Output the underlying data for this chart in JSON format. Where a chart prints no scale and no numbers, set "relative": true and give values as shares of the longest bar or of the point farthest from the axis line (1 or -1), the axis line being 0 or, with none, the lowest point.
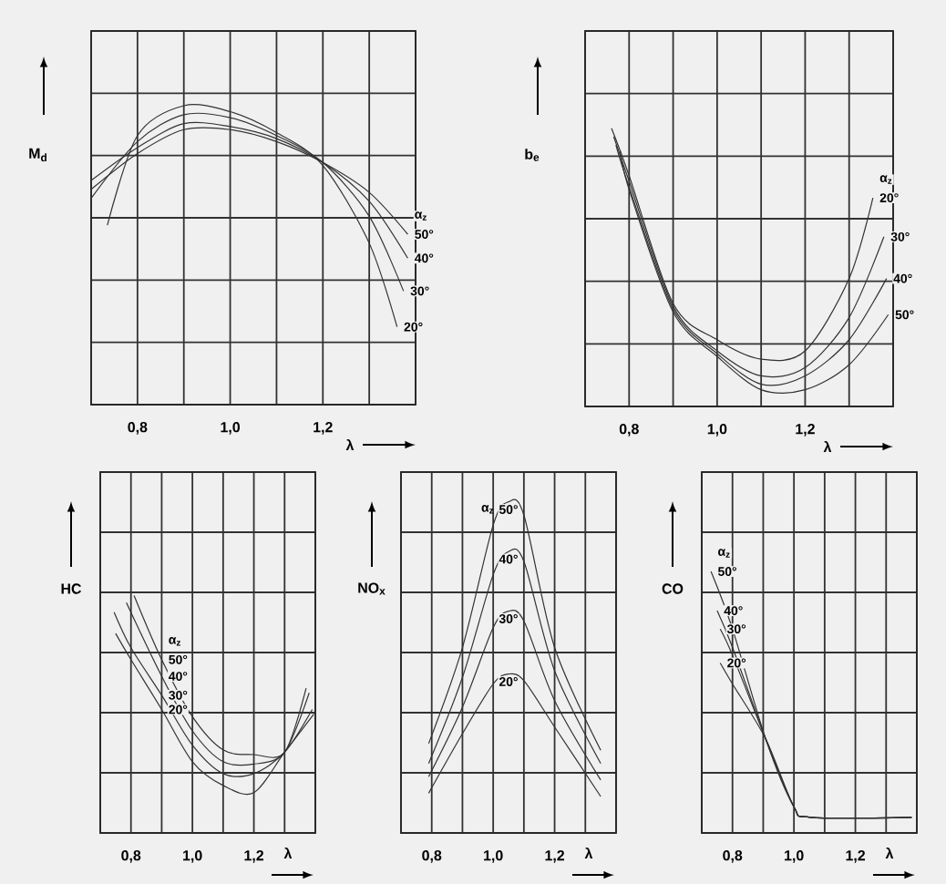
{
  "chart_data": [
    {
      "type": "line",
      "ylabel": "M$_{d}$",
      "xlabel": "λ",
      "legend_title": "α$_{z}$",
      "relative": true,
      "grid": true,
      "xlim": [
        0.7,
        1.4
      ],
      "xticks": [
        {
          "value": 0.7,
          "label": null
        },
        {
          "value": 0.8,
          "label": "0,8"
        },
        {
          "value": 0.9,
          "label": null
        },
        {
          "value": 1.0,
          "label": "1,0"
        },
        {
          "value": 1.1,
          "label": null
        },
        {
          "value": 1.2,
          "label": "1,2"
        },
        {
          "value": 1.3,
          "label": null
        },
        {
          "value": 1.4,
          "label": null
        }
      ],
      "series": [
        {
          "name": "50°",
          "color": "#333333",
          "x": [
            0.7,
            0.8,
            0.9,
            1.0,
            1.1,
            1.2,
            1.3,
            1.383
          ],
          "values": [
            0.72,
            0.84,
            0.92,
            0.92,
            0.88,
            0.81,
            0.71,
            0.57
          ]
        },
        {
          "name": "40°",
          "color": "#333333",
          "x": [
            0.7,
            0.8,
            0.9,
            1.0,
            1.1,
            1.2,
            1.3,
            1.383
          ],
          "values": [
            0.75,
            0.86,
            0.94,
            0.93,
            0.89,
            0.81,
            0.68,
            0.49
          ]
        },
        {
          "name": "30°",
          "color": "#333333",
          "x": [
            0.7,
            0.8,
            0.9,
            1.0,
            1.1,
            1.2,
            1.3,
            1.374
          ],
          "values": [
            0.69,
            0.88,
            0.97,
            0.96,
            0.9,
            0.81,
            0.63,
            0.38
          ]
        },
        {
          "name": "20°",
          "color": "#333333",
          "x": [
            0.735,
            0.8,
            0.9,
            1.0,
            1.1,
            1.2,
            1.3,
            1.36
          ],
          "values": [
            0.6,
            0.9,
            1.0,
            0.98,
            0.91,
            0.8,
            0.54,
            0.26
          ]
        }
      ]
    },
    {
      "type": "line",
      "ylabel": "b$_{e}$",
      "xlabel": "λ",
      "legend_title": "α$_{z}$",
      "relative": true,
      "grid": true,
      "xlim": [
        0.7,
        1.4
      ],
      "xticks": [
        {
          "value": 0.7,
          "label": null
        },
        {
          "value": 0.8,
          "label": "0,8"
        },
        {
          "value": 0.9,
          "label": null
        },
        {
          "value": 1.0,
          "label": "1,0"
        },
        {
          "value": 1.1,
          "label": null
        },
        {
          "value": 1.2,
          "label": "1,2"
        },
        {
          "value": 1.3,
          "label": null
        },
        {
          "value": 1.4,
          "label": null
        }
      ],
      "series": [
        {
          "name": "20°",
          "color": "#333333",
          "x": [
            0.76,
            0.8,
            0.9,
            1.0,
            1.1,
            1.2,
            1.3,
            1.354
          ],
          "values": [
            1.0,
            0.83,
            0.37,
            0.24,
            0.17,
            0.2,
            0.46,
            0.75
          ]
        },
        {
          "name": "30°",
          "color": "#333333",
          "x": [
            0.765,
            0.8,
            0.9,
            1.0,
            1.1,
            1.2,
            1.3,
            1.379
          ],
          "values": [
            0.97,
            0.81,
            0.36,
            0.2,
            0.11,
            0.14,
            0.32,
            0.61
          ]
        },
        {
          "name": "40°",
          "color": "#333333",
          "x": [
            0.77,
            0.8,
            0.9,
            1.0,
            1.1,
            1.2,
            1.3,
            1.385
          ],
          "values": [
            0.94,
            0.79,
            0.35,
            0.19,
            0.08,
            0.11,
            0.24,
            0.46
          ]
        },
        {
          "name": "50°",
          "color": "#333333",
          "x": [
            0.78,
            0.8,
            0.9,
            1.0,
            1.1,
            1.2,
            1.3,
            1.389
          ],
          "values": [
            0.92,
            0.78,
            0.34,
            0.18,
            0.06,
            0.06,
            0.15,
            0.33
          ]
        }
      ]
    },
    {
      "type": "line",
      "ylabel": "HC",
      "xlabel": "λ",
      "legend_title": "α$_{z}$",
      "relative": true,
      "grid": true,
      "xlim": [
        0.7,
        1.4
      ],
      "xticks": [
        {
          "value": 0.7,
          "label": null
        },
        {
          "value": 0.8,
          "label": "0,8"
        },
        {
          "value": 0.9,
          "label": null
        },
        {
          "value": 1.0,
          "label": "1,0"
        },
        {
          "value": 1.1,
          "label": null
        },
        {
          "value": 1.2,
          "label": "1,2"
        },
        {
          "value": 1.3,
          "label": null
        },
        {
          "value": 1.4,
          "label": null
        }
      ],
      "series": [
        {
          "name": "50°",
          "color": "#333333",
          "x": [
            0.81,
            0.9,
            1.0,
            1.1,
            1.2,
            1.3,
            1.37
          ],
          "values": [
            1.0,
            0.73,
            0.49,
            0.35,
            0.33,
            0.34,
            0.61
          ]
        },
        {
          "name": "40°",
          "color": "#333333",
          "x": [
            0.785,
            0.9,
            1.0,
            1.1,
            1.2,
            1.3,
            1.38
          ],
          "values": [
            0.97,
            0.66,
            0.43,
            0.3,
            0.29,
            0.34,
            0.59
          ]
        },
        {
          "name": "30°",
          "color": "#333333",
          "x": [
            0.745,
            0.8,
            0.9,
            1.0,
            1.1,
            1.2,
            1.3,
            1.39
          ],
          "values": [
            0.93,
            0.78,
            0.58,
            0.37,
            0.25,
            0.25,
            0.34,
            0.52
          ]
        },
        {
          "name": "20°",
          "color": "#333333",
          "x": [
            0.75,
            0.8,
            0.9,
            1.0,
            1.1,
            1.2,
            1.3,
            1.395
          ],
          "values": [
            0.84,
            0.73,
            0.52,
            0.3,
            0.2,
            0.17,
            0.34,
            0.5
          ]
        }
      ]
    },
    {
      "type": "line",
      "ylabel": "NO$_{x}$",
      "xlabel": "λ",
      "legend_title": "α$_{z}$",
      "relative": true,
      "grid": true,
      "xlim": [
        0.7,
        1.4
      ],
      "xticks": [
        {
          "value": 0.7,
          "label": null
        },
        {
          "value": 0.8,
          "label": "0,8"
        },
        {
          "value": 0.9,
          "label": null
        },
        {
          "value": 1.0,
          "label": "1,0"
        },
        {
          "value": 1.1,
          "label": null
        },
        {
          "value": 1.2,
          "label": "1,2"
        },
        {
          "value": 1.3,
          "label": null
        },
        {
          "value": 1.4,
          "label": null
        }
      ],
      "series": [
        {
          "name": "50°",
          "color": "#333333",
          "x": [
            0.79,
            0.9,
            1.0,
            1.05,
            1.1,
            1.2,
            1.35
          ],
          "values": [
            0.27,
            0.56,
            0.93,
            1.0,
            0.96,
            0.56,
            0.25
          ]
        },
        {
          "name": "40°",
          "color": "#333333",
          "x": [
            0.79,
            0.9,
            1.0,
            1.05,
            1.1,
            1.2,
            1.35
          ],
          "values": [
            0.21,
            0.47,
            0.78,
            0.85,
            0.82,
            0.49,
            0.21
          ]
        },
        {
          "name": "30°",
          "color": "#333333",
          "x": [
            0.79,
            0.9,
            1.0,
            1.05,
            1.1,
            1.2,
            1.35
          ],
          "values": [
            0.17,
            0.38,
            0.62,
            0.67,
            0.64,
            0.4,
            0.16
          ]
        },
        {
          "name": "20°",
          "color": "#333333",
          "x": [
            0.79,
            0.9,
            1.0,
            1.05,
            1.1,
            1.2,
            1.35
          ],
          "values": [
            0.12,
            0.3,
            0.45,
            0.48,
            0.46,
            0.32,
            0.11
          ]
        }
      ]
    },
    {
      "type": "line",
      "ylabel": "CO",
      "xlabel": "λ",
      "legend_title": "α$_{z}$",
      "relative": true,
      "grid": true,
      "xlim": [
        0.7,
        1.4
      ],
      "xticks": [
        {
          "value": 0.7,
          "label": null
        },
        {
          "value": 0.8,
          "label": "0,8"
        },
        {
          "value": 0.9,
          "label": null
        },
        {
          "value": 1.0,
          "label": "1,0"
        },
        {
          "value": 1.1,
          "label": null
        },
        {
          "value": 1.2,
          "label": "1,2"
        },
        {
          "value": 1.3,
          "label": null
        },
        {
          "value": 1.4,
          "label": null
        }
      ],
      "series": [
        {
          "name": "50°",
          "color": "#333333",
          "x": [
            0.73,
            0.8,
            0.908,
            1.0,
            1.055,
            1.383
          ],
          "values": [
            1.0,
            0.78,
            0.36,
            0.1,
            0.06,
            0.06
          ]
        },
        {
          "name": "40°",
          "color": "#333333",
          "x": [
            0.75,
            0.8,
            0.908,
            1.0,
            1.055,
            1.383
          ],
          "values": [
            0.85,
            0.71,
            0.36,
            0.1,
            0.06,
            0.06
          ]
        },
        {
          "name": "30°",
          "color": "#333333",
          "x": [
            0.76,
            0.8,
            0.908,
            1.0,
            1.055,
            1.383
          ],
          "values": [
            0.78,
            0.68,
            0.36,
            0.1,
            0.06,
            0.06
          ]
        },
        {
          "name": "20°",
          "color": "#333333",
          "x": [
            0.76,
            0.8,
            0.908,
            1.0,
            1.055,
            1.383
          ],
          "values": [
            0.65,
            0.57,
            0.36,
            0.1,
            0.06,
            0.06
          ]
        }
      ]
    }
  ]
}
